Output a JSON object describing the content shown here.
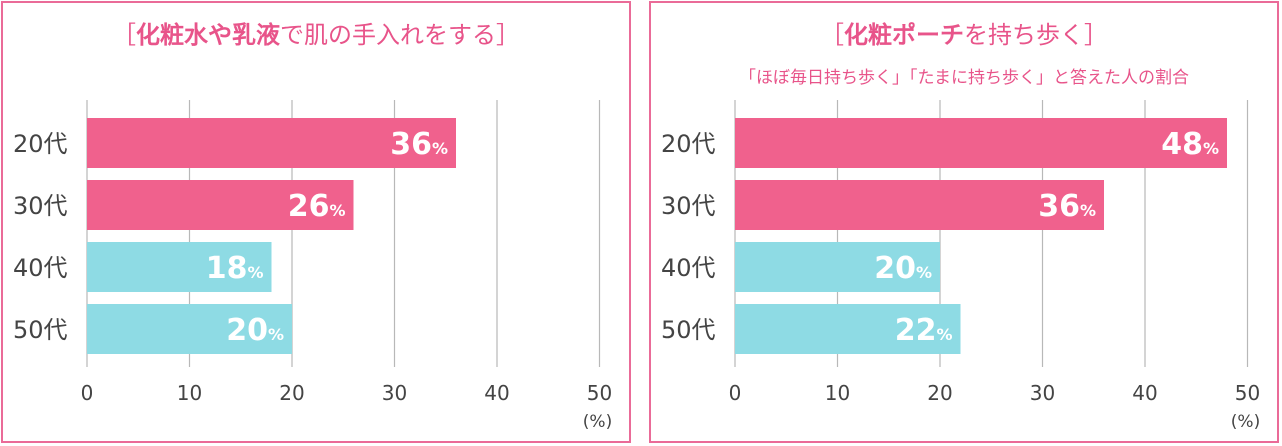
{
  "colors": {
    "border": "#ea6b98",
    "title": "#e8548a",
    "grid": "#b8b8b8",
    "bar_pink": "#f0618d",
    "bar_cyan": "#8edbe4",
    "text": "#444444"
  },
  "chart_data": [
    {
      "type": "bar",
      "orientation": "horizontal",
      "title": {
        "open": "［",
        "bold": "化粧水や乳液",
        "normal": "で肌の手入れをする",
        "close": "］"
      },
      "subtitle": "",
      "categories": [
        "20代",
        "30代",
        "40代",
        "50代"
      ],
      "values": [
        36,
        26,
        18,
        20
      ],
      "value_suffix": "%",
      "bar_colors": [
        "#f0618d",
        "#f0618d",
        "#8edbe4",
        "#8edbe4"
      ],
      "xlim": [
        0,
        50
      ],
      "xticks": [
        0,
        10,
        20,
        30,
        40,
        50
      ],
      "xunit": "(%)",
      "grid": true
    },
    {
      "type": "bar",
      "orientation": "horizontal",
      "title": {
        "open": "［",
        "bold": "化粧ポーチ",
        "normal": "を持ち歩く",
        "close": "］"
      },
      "subtitle": "「ほぼ毎日持ち歩く」「たまに持ち歩く」と答えた人の割合",
      "categories": [
        "20代",
        "30代",
        "40代",
        "50代"
      ],
      "values": [
        48,
        36,
        20,
        22
      ],
      "value_suffix": "%",
      "bar_colors": [
        "#f0618d",
        "#f0618d",
        "#8edbe4",
        "#8edbe4"
      ],
      "xlim": [
        0,
        50
      ],
      "xticks": [
        0,
        10,
        20,
        30,
        40,
        50
      ],
      "xunit": "(%)",
      "grid": true
    }
  ]
}
